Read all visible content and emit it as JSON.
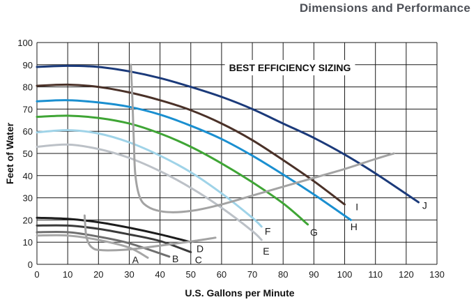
{
  "header": {
    "title": "Dimensions and Performance"
  },
  "chart_data": {
    "type": "line",
    "title": "",
    "annotation": "BEST EFFICIENCY SIZING",
    "xlabel": "U.S. Gallons per Minute",
    "ylabel": "Feet of Water",
    "xlim": [
      0,
      130
    ],
    "ylim": [
      0,
      100
    ],
    "xticks": [
      0,
      10,
      20,
      30,
      40,
      50,
      60,
      70,
      80,
      90,
      100,
      110,
      120,
      130
    ],
    "yticks": [
      0,
      10,
      20,
      30,
      40,
      50,
      60,
      70,
      80,
      90,
      100
    ],
    "grid": true,
    "series": [
      {
        "name": "J",
        "color": "#1b3a7a",
        "x": [
          0,
          10,
          20,
          30,
          40,
          50,
          60,
          70,
          80,
          90,
          100,
          110,
          124
        ],
        "y": [
          89,
          89.5,
          89,
          87,
          84,
          80,
          75.5,
          70,
          63.5,
          57,
          49.5,
          41,
          28
        ]
      },
      {
        "name": "I",
        "color": "#4a3128",
        "x": [
          0,
          10,
          20,
          30,
          40,
          50,
          60,
          70,
          80,
          90,
          100
        ],
        "y": [
          80.5,
          81,
          80,
          77.5,
          74,
          69.5,
          63.5,
          56,
          47,
          37.5,
          27
        ]
      },
      {
        "name": "H",
        "color": "#1a8fd0",
        "x": [
          0,
          10,
          20,
          30,
          40,
          50,
          60,
          70,
          80,
          90,
          102
        ],
        "y": [
          73.5,
          74,
          73,
          71,
          67.5,
          62.5,
          56.5,
          49,
          40.5,
          31.5,
          20
        ]
      },
      {
        "name": "G",
        "color": "#3fa535",
        "x": [
          0,
          10,
          20,
          30,
          40,
          50,
          60,
          70,
          80,
          88
        ],
        "y": [
          66.5,
          67,
          66,
          63.5,
          59,
          53,
          45.5,
          37,
          27.5,
          18
        ]
      },
      {
        "name": "F",
        "color": "#9fd3e8",
        "x": [
          0,
          10,
          20,
          30,
          40,
          50,
          60,
          70,
          73
        ],
        "y": [
          59.5,
          60.5,
          59,
          55,
          49,
          41.5,
          32,
          21,
          17
        ]
      },
      {
        "name": "E",
        "color": "#bcc1c7",
        "x": [
          0,
          10,
          20,
          30,
          40,
          50,
          60,
          70,
          73
        ],
        "y": [
          53,
          54,
          52,
          48,
          42,
          34.5,
          25.5,
          15,
          11
        ]
      },
      {
        "name": "D",
        "color": "#1c1c1c",
        "x": [
          0,
          10,
          20,
          30,
          40,
          50
        ],
        "y": [
          21,
          20.5,
          19,
          16.5,
          13.5,
          10
        ]
      },
      {
        "name": "C",
        "color": "#3a3a3a",
        "x": [
          0,
          10,
          20,
          30,
          40,
          50
        ],
        "y": [
          17.5,
          17.5,
          16,
          13.5,
          10.5,
          5.5
        ]
      },
      {
        "name": "B",
        "color": "#6f6f6f",
        "x": [
          0,
          10,
          20,
          30,
          43
        ],
        "y": [
          14.5,
          14.5,
          12.5,
          9.5,
          3.5
        ]
      },
      {
        "name": "A",
        "color": "#a6a6a6",
        "x": [
          0,
          10,
          20,
          30,
          36
        ],
        "y": [
          13,
          13,
          11,
          7.5,
          3
        ]
      }
    ],
    "efficiency_curves": [
      {
        "name": "upper-efficiency",
        "color": "#a3a3a3",
        "x": [
          30.5,
          31,
          31.5,
          32,
          33.5,
          36,
          40,
          45,
          52,
          60,
          70,
          80,
          90,
          100,
          110,
          116
        ],
        "y": [
          90,
          75,
          55,
          40,
          30,
          26,
          24,
          23.5,
          24.5,
          27,
          31,
          35,
          39,
          43,
          47.5,
          50
        ]
      },
      {
        "name": "lower-efficiency",
        "color": "#a3a3a3",
        "x": [
          15.5,
          16,
          17,
          18.5,
          20,
          23,
          28,
          35,
          43,
          51,
          58
        ],
        "y": [
          22,
          13,
          9,
          7,
          6.5,
          6.3,
          6.5,
          7.5,
          9,
          10.5,
          12
        ]
      }
    ],
    "curve_labels": [
      {
        "text": "J",
        "x": 126,
        "y": 26.5
      },
      {
        "text": "I",
        "x": 104,
        "y": 26
      },
      {
        "text": "H",
        "x": 103,
        "y": 17
      },
      {
        "text": "G",
        "x": 90,
        "y": 14.5
      },
      {
        "text": "F",
        "x": 75,
        "y": 15
      },
      {
        "text": "E",
        "x": 74.5,
        "y": 6
      },
      {
        "text": "D",
        "x": 53,
        "y": 7
      },
      {
        "text": "C",
        "x": 52.5,
        "y": 2
      },
      {
        "text": "B",
        "x": 45,
        "y": 2.5
      },
      {
        "text": "A",
        "x": 32,
        "y": 2
      }
    ]
  }
}
